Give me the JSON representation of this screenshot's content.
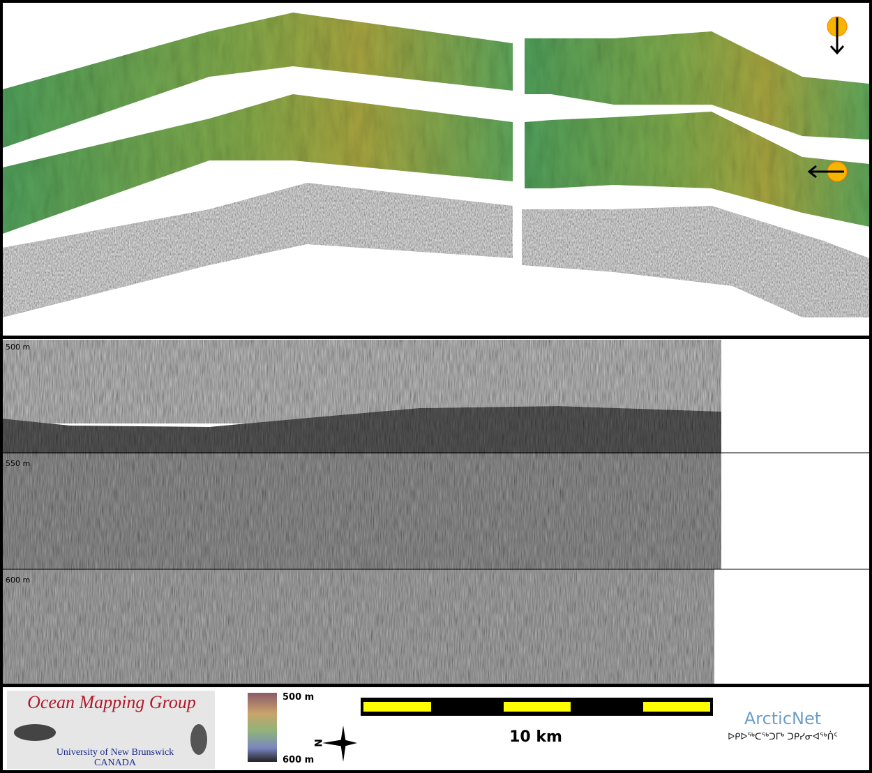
{
  "profile": {
    "depth_labels": [
      "500 m",
      "550 m",
      "600 m"
    ]
  },
  "footer": {
    "logo": {
      "title": "Ocean Mapping Group",
      "line1": "University of New Brunswick",
      "line2": "CANADA"
    },
    "colorbar": {
      "top_label": "500 m",
      "bottom_label": "600 m"
    },
    "north_label": "N",
    "scale_label": "10 km",
    "partner": {
      "name": "ArcticNet",
      "syllabics": "ᐅᑭᐅᖅᑕᖅᑐᒥᒃ ᑐᑭᓯᓂᐊᖅᑏᑦ"
    }
  }
}
